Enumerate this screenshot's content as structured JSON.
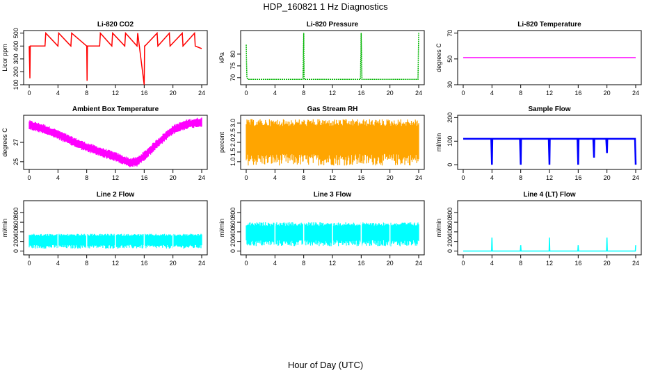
{
  "page": {
    "title": "HDP_160821  1 Hz Diagnostics",
    "xlabel": "Hour of Day (UTC)"
  },
  "chart_data": [
    {
      "type": "line",
      "title": "Li-820 CO2",
      "ylabel": "Licor ppm",
      "color": "#ff0000",
      "xlim": [
        0,
        24
      ],
      "ylim": [
        100,
        520
      ],
      "xticks": [
        "0",
        "4",
        "8",
        "12",
        "16",
        "20",
        "24"
      ],
      "yticks": [
        "100",
        "200",
        "300",
        "400",
        "500"
      ],
      "series": [
        {
          "x": [
            0,
            0.1,
            0.15,
            0.2,
            2.2,
            2.3,
            4,
            4.1,
            5.8,
            5.9,
            8,
            8.05,
            8.1,
            9.8,
            9.9,
            11.5,
            11.6,
            13.3,
            13.4,
            15,
            15.1,
            16,
            16.05,
            16.1,
            17.8,
            17.9,
            19.5,
            19.6,
            21.3,
            21.4,
            23,
            23.1,
            24
          ],
          "y": [
            400,
            150,
            400,
            400,
            400,
            500,
            400,
            500,
            400,
            500,
            400,
            130,
            400,
            400,
            500,
            400,
            500,
            400,
            500,
            400,
            500,
            100,
            400,
            400,
            500,
            400,
            500,
            400,
            500,
            400,
            500,
            400,
            380
          ]
        }
      ]
    },
    {
      "type": "line",
      "title": "Li-820 Pressure",
      "ylabel": "kPa",
      "color": "#00b400",
      "xlim": [
        0,
        24
      ],
      "ylim": [
        67,
        90
      ],
      "xticks": [
        "0",
        "4",
        "8",
        "12",
        "16",
        "20",
        "24"
      ],
      "yticks": [
        "70",
        "75",
        "80"
      ],
      "series": [
        {
          "x": [
            0,
            0.05,
            0.1,
            0.2,
            7.9,
            8,
            8.05,
            15.9,
            16,
            16.1,
            23.9,
            24
          ],
          "y": [
            84,
            76,
            70,
            69.3,
            69.3,
            89,
            69.3,
            69.3,
            89,
            69.3,
            69.3,
            89
          ]
        }
      ]
    },
    {
      "type": "line",
      "title": "Li-820 Temperature",
      "ylabel": "degrees C",
      "color": "#ff00ff",
      "xlim": [
        0,
        24
      ],
      "ylim": [
        30,
        72
      ],
      "xticks": [
        "0",
        "4",
        "8",
        "12",
        "16",
        "20",
        "24"
      ],
      "yticks": [
        "30",
        "50",
        "70"
      ],
      "series": [
        {
          "x": [
            0,
            24
          ],
          "y": [
            51,
            51
          ]
        }
      ]
    },
    {
      "type": "line",
      "title": "Ambient Box Temperature",
      "ylabel": "degrees C",
      "color": "#ff00ff",
      "xlim": [
        0,
        24
      ],
      "ylim": [
        24.2,
        29.8
      ],
      "xticks": [
        "0",
        "4",
        "8",
        "12",
        "16",
        "20",
        "24"
      ],
      "yticks": [
        "25",
        "27"
      ],
      "series": [
        {
          "x": [
            0,
            2,
            4,
            6,
            8,
            10,
            12,
            14,
            15,
            16,
            18,
            20,
            22,
            24
          ],
          "y": [
            28.8,
            28.4,
            27.8,
            27.1,
            26.5,
            26.0,
            25.5,
            24.9,
            25.0,
            25.6,
            27.0,
            28.3,
            28.9,
            29.1
          ]
        }
      ]
    },
    {
      "type": "line",
      "title": "Gas Stream RH",
      "ylabel": "percent",
      "color": "#ffa500",
      "xlim": [
        0,
        24
      ],
      "ylim": [
        0.6,
        3.4
      ],
      "xticks": [
        "0",
        "4",
        "8",
        "12",
        "16",
        "20",
        "24"
      ],
      "yticks": [
        "1.0",
        "1.5",
        "2.0",
        "2.5",
        "3.0"
      ],
      "series": [
        {
          "x": [
            0,
            24
          ],
          "y_range": [
            0.8,
            3.2
          ]
        }
      ]
    },
    {
      "type": "line",
      "title": "Sample Flow",
      "ylabel": "ml/min",
      "color": "#0000ff",
      "xlim": [
        0,
        24
      ],
      "ylim": [
        -20,
        210
      ],
      "xticks": [
        "0",
        "4",
        "8",
        "12",
        "16",
        "20",
        "24"
      ],
      "yticks": [
        "0",
        "100",
        "200"
      ],
      "series": [
        {
          "x": [
            0,
            3.9,
            4,
            4.05,
            7.9,
            8,
            8.05,
            11.9,
            12,
            12.05,
            15.9,
            16,
            16.05,
            18.1,
            18.2,
            18.25,
            19.9,
            20,
            20.05,
            23.9,
            24
          ],
          "y": [
            110,
            110,
            0,
            110,
            110,
            0,
            110,
            110,
            0,
            110,
            110,
            0,
            110,
            110,
            30,
            110,
            110,
            50,
            110,
            110,
            0
          ]
        }
      ]
    },
    {
      "type": "line",
      "title": "Line 2 Flow",
      "ylabel": "ml/min",
      "color": "#00ffff",
      "xlim": [
        0,
        24
      ],
      "ylim": [
        -80,
        1050
      ],
      "xticks": [
        "0",
        "4",
        "8",
        "12",
        "16",
        "20",
        "24"
      ],
      "yticks": [
        "0",
        "200",
        "400",
        "600",
        "800"
      ],
      "series": [
        {
          "x": [
            0,
            24
          ],
          "y_range": [
            50,
            360
          ]
        }
      ]
    },
    {
      "type": "line",
      "title": "Line 3 Flow",
      "ylabel": "ml/min",
      "color": "#00ffff",
      "xlim": [
        0,
        24
      ],
      "ylim": [
        -80,
        1050
      ],
      "xticks": [
        "0",
        "4",
        "8",
        "12",
        "16",
        "20",
        "24"
      ],
      "yticks": [
        "0",
        "200",
        "400",
        "600",
        "800"
      ],
      "series": [
        {
          "x": [
            0,
            24
          ],
          "y_range": [
            100,
            600
          ]
        }
      ]
    },
    {
      "type": "line",
      "title": "Line 4 (LT) Flow",
      "ylabel": "ml/min",
      "color": "#00ffff",
      "xlim": [
        0,
        24
      ],
      "ylim": [
        -80,
        1050
      ],
      "xticks": [
        "0",
        "4",
        "8",
        "12",
        "16",
        "20",
        "24"
      ],
      "yticks": [
        "0",
        "200",
        "400",
        "600",
        "800"
      ],
      "series": [
        {
          "x": [
            0,
            3.95,
            4,
            4.05,
            7.95,
            8,
            8.05,
            11.95,
            12,
            12.05,
            15.95,
            16,
            16.05,
            19.95,
            20,
            20.05,
            23.95,
            24
          ],
          "y": [
            0,
            0,
            280,
            0,
            0,
            120,
            0,
            0,
            280,
            0,
            0,
            120,
            0,
            0,
            280,
            0,
            0,
            120
          ]
        }
      ]
    }
  ]
}
